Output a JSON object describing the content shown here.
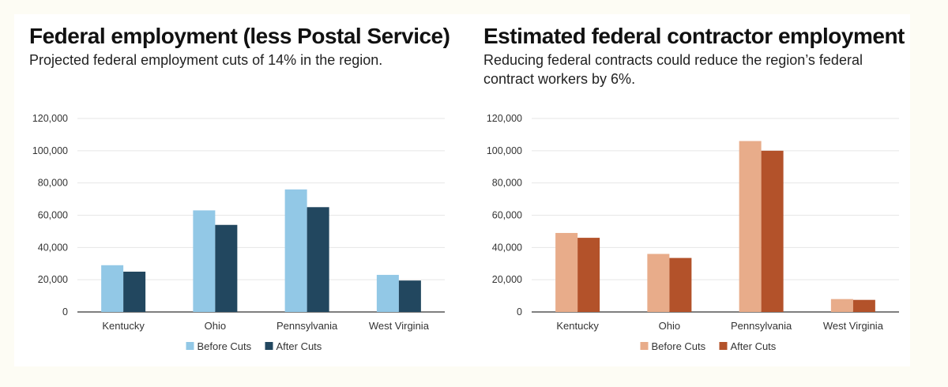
{
  "chart_data": [
    {
      "type": "bar",
      "title": "Federal employment (less Postal Service)",
      "subtitle": "Projected federal employment cuts of 14% in the region.",
      "categories": [
        "Kentucky",
        "Ohio",
        "Pennsylvania",
        "West Virginia"
      ],
      "series": [
        {
          "name": "Before Cuts",
          "color": "#92c8e6",
          "values": [
            29000,
            63000,
            76000,
            23000
          ]
        },
        {
          "name": "After Cuts",
          "color": "#22475f",
          "values": [
            25000,
            54000,
            65000,
            19500
          ]
        }
      ],
      "ylim": [
        0,
        120000
      ],
      "yticks": [
        "0",
        "20,000",
        "40,000",
        "60,000",
        "80,000",
        "100,000",
        "120,000"
      ],
      "grid": true,
      "legend": "bottom-center"
    },
    {
      "type": "bar",
      "title": "Estimated federal contractor employment",
      "subtitle": "Reducing federal contracts could reduce the region’s federal contract workers by 6%.",
      "categories": [
        "Kentucky",
        "Ohio",
        "Pennsylvania",
        "West Virginia"
      ],
      "series": [
        {
          "name": "Before Cuts",
          "color": "#e8ac8a",
          "values": [
            49000,
            36000,
            106000,
            8000
          ]
        },
        {
          "name": "After Cuts",
          "color": "#b3522a",
          "values": [
            46000,
            33500,
            100000,
            7500
          ]
        }
      ],
      "ylim": [
        0,
        120000
      ],
      "yticks": [
        "0",
        "20,000",
        "40,000",
        "60,000",
        "80,000",
        "100,000",
        "120,000"
      ],
      "grid": true,
      "legend": "bottom-center"
    }
  ]
}
